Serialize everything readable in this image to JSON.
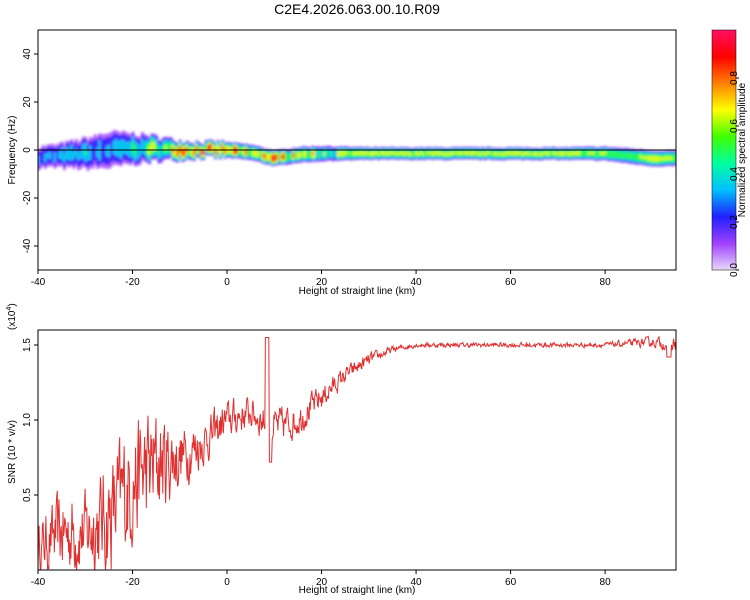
{
  "title": "C2E4.2026.063.00.10.R09",
  "colors": {
    "snr_line": "#e03030",
    "axis": "#000000"
  },
  "chart_data": [
    {
      "type": "heatmap",
      "xlabel": "Height of straight line (km)",
      "ylabel": "Frequency (Hz)",
      "xlim": [
        -40,
        95
      ],
      "ylim": [
        -50,
        50
      ],
      "x_ticks": [
        -40,
        -20,
        0,
        20,
        40,
        60,
        80
      ],
      "y_ticks": [
        -40,
        -20,
        0,
        20,
        40
      ],
      "colorbar": {
        "label": "Normalized spectral amplitude",
        "range": [
          0,
          1
        ],
        "ticks": [
          "0.0",
          "0.2",
          "0.4",
          "0.6",
          "0.8"
        ],
        "colormap": [
          "#e8d8f8",
          "#a040ff",
          "#2020ff",
          "#00c0ff",
          "#00ffa0",
          "#40ff00",
          "#ffff00",
          "#ff8000",
          "#ff0000",
          "#ff1060"
        ]
      },
      "ridge": {
        "x": [
          -40,
          -35,
          -30,
          -25,
          -20,
          -15,
          -10,
          -5,
          0,
          5,
          10,
          15,
          20,
          25,
          30,
          40,
          50,
          60,
          70,
          80,
          85,
          90,
          95
        ],
        "freq": [
          -3,
          -2.5,
          -1.5,
          0,
          0.5,
          0.5,
          0,
          0,
          0,
          -1,
          -3.5,
          -2,
          -1.5,
          -1.5,
          -1.5,
          -1.5,
          -1.5,
          -1.5,
          -1.5,
          -1.5,
          -2.5,
          -3.5,
          -3.5
        ],
        "amplitude": [
          0.3,
          0.35,
          0.4,
          0.35,
          0.45,
          0.6,
          0.75,
          0.8,
          0.85,
          0.75,
          0.85,
          0.7,
          0.6,
          0.62,
          0.65,
          0.65,
          0.65,
          0.65,
          0.65,
          0.62,
          0.55,
          0.7,
          0.6
        ],
        "spread_hz": [
          3.5,
          4,
          5,
          6,
          5,
          4,
          3,
          2.5,
          2.5,
          2.5,
          2.5,
          2.5,
          2.5,
          2.2,
          2,
          2,
          2,
          2,
          2,
          2.2,
          2.5,
          2.5,
          2.5
        ]
      }
    },
    {
      "type": "line",
      "xlabel": "Height of straight line (km)",
      "ylabel": "SNR (10 * v/v)",
      "y_multiplier": "(x10",
      "y_multiplier_exp": "4",
      "y_multiplier_close": ")",
      "xlim": [
        -40,
        95
      ],
      "ylim": [
        0,
        1.6
      ],
      "x_ticks": [
        -40,
        -20,
        0,
        20,
        40,
        60,
        80
      ],
      "y_ticks": [
        0.5,
        1.0,
        1.5
      ],
      "envelope": {
        "x": [
          -40,
          -35,
          -30,
          -25,
          -20,
          -15,
          -10,
          -5,
          0,
          5,
          10,
          15,
          20,
          25,
          30,
          35,
          40,
          50,
          60,
          70,
          80,
          90,
          95
        ],
        "mean": [
          0.15,
          0.25,
          0.25,
          0.35,
          0.6,
          0.7,
          0.75,
          0.85,
          1.0,
          1.05,
          0.95,
          1.0,
          1.15,
          1.3,
          1.4,
          1.47,
          1.5,
          1.5,
          1.5,
          1.5,
          1.5,
          1.52,
          1.5
        ],
        "spread": [
          0.15,
          0.25,
          0.25,
          0.35,
          0.4,
          0.35,
          0.2,
          0.14,
          0.12,
          0.1,
          0.12,
          0.1,
          0.08,
          0.05,
          0.04,
          0.02,
          0.015,
          0.015,
          0.015,
          0.015,
          0.015,
          0.03,
          0.05
        ]
      }
    }
  ]
}
